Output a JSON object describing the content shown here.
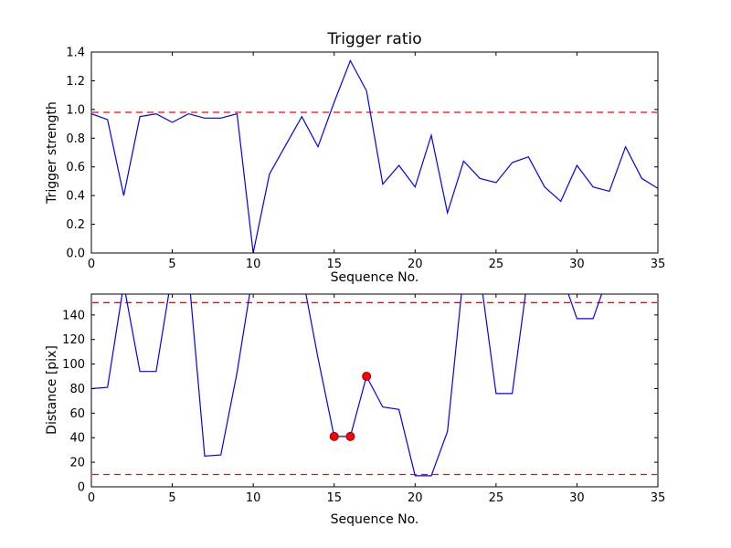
{
  "figure": {
    "background": "#ffffff",
    "line_color": "#0000ff",
    "threshold_color": "#ff0000",
    "marker_color": "#ff0000",
    "frame_color": "#000000"
  },
  "chart_data": [
    {
      "type": "line",
      "title": "Trigger ratio",
      "xlabel": "Sequence No.",
      "ylabel": "Trigger strength",
      "xlim": [
        0,
        35
      ],
      "ylim": [
        0.0,
        1.4
      ],
      "xticks": [
        0,
        5,
        10,
        15,
        20,
        25,
        30,
        35
      ],
      "xtick_labels": [
        "0",
        "5",
        "10",
        "15",
        "20",
        "25",
        "30",
        "35"
      ],
      "yticks": [
        0.0,
        0.2,
        0.4,
        0.6,
        0.8,
        1.0,
        1.2,
        1.4
      ],
      "ytick_labels": [
        "0.0",
        "0.2",
        "0.4",
        "0.6",
        "0.8",
        "1.0",
        "1.2",
        "1.4"
      ],
      "grid": false,
      "legend": null,
      "x": [
        0,
        1,
        2,
        3,
        4,
        5,
        6,
        7,
        8,
        9,
        10,
        11,
        12,
        13,
        14,
        15,
        16,
        17,
        18,
        19,
        20,
        21,
        22,
        23,
        24,
        25,
        26,
        27,
        28,
        29,
        30,
        31,
        32,
        33,
        34,
        35
      ],
      "y": [
        0.97,
        0.93,
        0.4,
        0.95,
        0.97,
        0.91,
        0.97,
        0.94,
        0.94,
        0.97,
        0.0,
        0.55,
        0.75,
        0.95,
        0.74,
        1.05,
        1.34,
        1.13,
        0.48,
        0.61,
        0.46,
        0.82,
        0.28,
        0.64,
        0.52,
        0.49,
        0.63,
        0.67,
        0.46,
        0.36,
        0.61,
        0.46,
        0.43,
        0.74,
        0.52,
        0.45
      ],
      "thresholds": [
        0.98
      ],
      "markers": []
    },
    {
      "type": "line",
      "title": "",
      "xlabel": "Sequence No.",
      "ylabel": "Distance [pix]",
      "xlim": [
        0,
        35
      ],
      "ylim": [
        0,
        157
      ],
      "xticks": [
        0,
        5,
        10,
        15,
        20,
        25,
        30,
        35
      ],
      "xtick_labels": [
        "0",
        "5",
        "10",
        "15",
        "20",
        "25",
        "30",
        "35"
      ],
      "yticks": [
        0,
        20,
        40,
        60,
        80,
        100,
        120,
        140
      ],
      "ytick_labels": [
        "0",
        "20",
        "40",
        "60",
        "80",
        "100",
        "120",
        "140"
      ],
      "grid": false,
      "legend": null,
      "x": [
        0,
        1,
        2,
        3,
        4,
        5,
        6,
        7,
        8,
        9,
        10,
        11,
        12,
        13,
        14,
        15,
        16,
        17,
        18,
        19,
        20,
        21,
        22,
        23,
        24,
        25,
        26,
        27,
        28,
        29,
        30,
        31,
        32,
        33,
        34,
        35
      ],
      "y": [
        80,
        81,
        165,
        94,
        94,
        175,
        175,
        25,
        26,
        93,
        175,
        175,
        175,
        175,
        105,
        41,
        41,
        90,
        65,
        63,
        9,
        9,
        45,
        175,
        175,
        76,
        76,
        175,
        175,
        175,
        137,
        137,
        175,
        175,
        175,
        175
      ],
      "thresholds": [
        150,
        10
      ],
      "markers": [
        {
          "x": 15,
          "y": 41
        },
        {
          "x": 16,
          "y": 41
        },
        {
          "x": 17,
          "y": 90
        }
      ]
    }
  ]
}
